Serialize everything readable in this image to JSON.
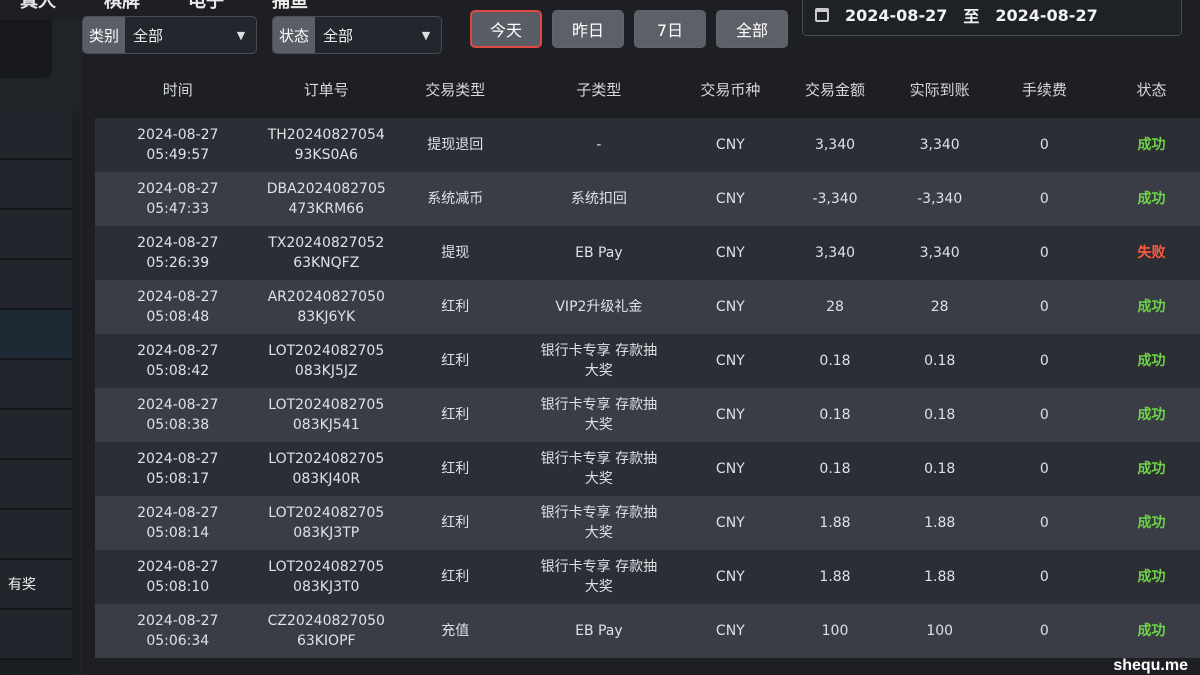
{
  "topnav": [
    "真人",
    "棋牌",
    "电子",
    "捕鱼"
  ],
  "sidebar": {
    "items": [
      "",
      "",
      "",
      "",
      "",
      "",
      "",
      "",
      "",
      "有奖",
      ""
    ]
  },
  "filters": {
    "category": {
      "label": "类别",
      "value": "全部"
    },
    "status": {
      "label": "状态",
      "value": "全部"
    },
    "quick": [
      "今天",
      "昨日",
      "7日",
      "全部"
    ],
    "active_quick": "今天",
    "date_from": "2024-08-27",
    "date_sep": "至",
    "date_to": "2024-08-27"
  },
  "colors": {
    "success": "#6fd34a",
    "fail": "#ff5a3c",
    "active_border": "#e0473f"
  },
  "table": {
    "headers": [
      "时间",
      "订单号",
      "交易类型",
      "子类型",
      "交易币种",
      "交易金额",
      "实际到账",
      "手续费",
      "状态"
    ],
    "rows": [
      {
        "date": "2024-08-27",
        "time": "05:49:57",
        "order1": "TH20240827054",
        "order2": "93KS0A6",
        "type": "提现退回",
        "sub1": "-",
        "sub2": "",
        "currency": "CNY",
        "amount": "3,340",
        "actual": "3,340",
        "fee": "0",
        "status": "成功",
        "ok": true
      },
      {
        "date": "2024-08-27",
        "time": "05:47:33",
        "order1": "DBA2024082705",
        "order2": "473KRM66",
        "type": "系统减币",
        "sub1": "系统扣回",
        "sub2": "",
        "currency": "CNY",
        "amount": "-3,340",
        "actual": "-3,340",
        "fee": "0",
        "status": "成功",
        "ok": true
      },
      {
        "date": "2024-08-27",
        "time": "05:26:39",
        "order1": "TX20240827052",
        "order2": "63KNQFZ",
        "type": "提现",
        "sub1": "EB Pay",
        "sub2": "",
        "currency": "CNY",
        "amount": "3,340",
        "actual": "3,340",
        "fee": "0",
        "status": "失败",
        "ok": false
      },
      {
        "date": "2024-08-27",
        "time": "05:08:48",
        "order1": "AR20240827050",
        "order2": "83KJ6YK",
        "type": "红利",
        "sub1": "VIP2升级礼金",
        "sub2": "",
        "currency": "CNY",
        "amount": "28",
        "actual": "28",
        "fee": "0",
        "status": "成功",
        "ok": true
      },
      {
        "date": "2024-08-27",
        "time": "05:08:42",
        "order1": "LOT2024082705",
        "order2": "083KJ5JZ",
        "type": "红利",
        "sub1": "银行卡专享 存款抽",
        "sub2": "大奖",
        "currency": "CNY",
        "amount": "0.18",
        "actual": "0.18",
        "fee": "0",
        "status": "成功",
        "ok": true
      },
      {
        "date": "2024-08-27",
        "time": "05:08:38",
        "order1": "LOT2024082705",
        "order2": "083KJ541",
        "type": "红利",
        "sub1": "银行卡专享 存款抽",
        "sub2": "大奖",
        "currency": "CNY",
        "amount": "0.18",
        "actual": "0.18",
        "fee": "0",
        "status": "成功",
        "ok": true
      },
      {
        "date": "2024-08-27",
        "time": "05:08:17",
        "order1": "LOT2024082705",
        "order2": "083KJ40R",
        "type": "红利",
        "sub1": "银行卡专享 存款抽",
        "sub2": "大奖",
        "currency": "CNY",
        "amount": "0.18",
        "actual": "0.18",
        "fee": "0",
        "status": "成功",
        "ok": true
      },
      {
        "date": "2024-08-27",
        "time": "05:08:14",
        "order1": "LOT2024082705",
        "order2": "083KJ3TP",
        "type": "红利",
        "sub1": "银行卡专享 存款抽",
        "sub2": "大奖",
        "currency": "CNY",
        "amount": "1.88",
        "actual": "1.88",
        "fee": "0",
        "status": "成功",
        "ok": true
      },
      {
        "date": "2024-08-27",
        "time": "05:08:10",
        "order1": "LOT2024082705",
        "order2": "083KJ3T0",
        "type": "红利",
        "sub1": "银行卡专享 存款抽",
        "sub2": "大奖",
        "currency": "CNY",
        "amount": "1.88",
        "actual": "1.88",
        "fee": "0",
        "status": "成功",
        "ok": true
      },
      {
        "date": "2024-08-27",
        "time": "05:06:34",
        "order1": "CZ20240827050",
        "order2": "63KIOPF",
        "type": "充值",
        "sub1": "EB Pay",
        "sub2": "",
        "currency": "CNY",
        "amount": "100",
        "actual": "100",
        "fee": "0",
        "status": "成功",
        "ok": true
      }
    ]
  },
  "watermark": "shequ.me"
}
